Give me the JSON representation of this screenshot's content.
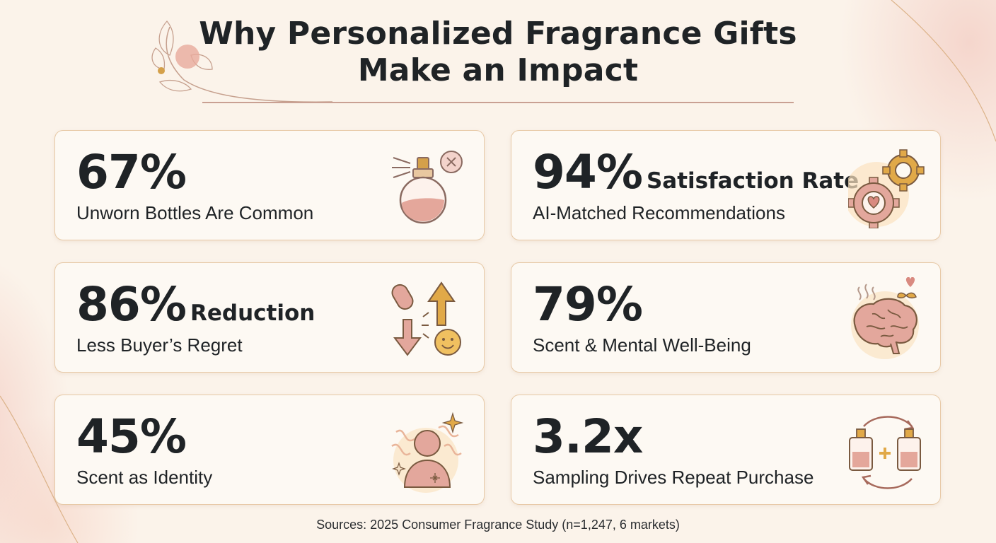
{
  "title": {
    "line1": "Why Personalized Fragrance Gifts",
    "line2": "Make an Impact"
  },
  "cards": [
    {
      "value": "67%",
      "suffix": "",
      "caption": "Unworn Bottles Are Common",
      "icon": "perfume-bottle-x-icon"
    },
    {
      "value": "94%",
      "suffix": "Satisfaction Rate",
      "caption": "AI-Matched Recommendations",
      "icon": "gears-heart-icon"
    },
    {
      "value": "86%",
      "suffix": "Reduction",
      "caption": "Less Buyer’s Regret",
      "icon": "arrows-smiley-icon"
    },
    {
      "value": "79%",
      "suffix": "",
      "caption": "Scent & Mental Well-Being",
      "icon": "brain-icon"
    },
    {
      "value": "45%",
      "suffix": "",
      "caption": "Scent as Identity",
      "icon": "person-sparkle-icon"
    },
    {
      "value": "3.2x",
      "suffix": "",
      "caption": "Sampling Drives Repeat Purchase",
      "icon": "bottles-cycle-icon"
    }
  ],
  "sources": "Sources: 2025 Consumer Fragrance Study (n=1,247, 6 markets)",
  "colors": {
    "background": "#fbf3ea",
    "card": "#fdf9f3",
    "card_border": "#e7c9a6",
    "accent_pink": "#d99a8f",
    "accent_gold": "#d4a04a",
    "text": "#1f2326"
  }
}
